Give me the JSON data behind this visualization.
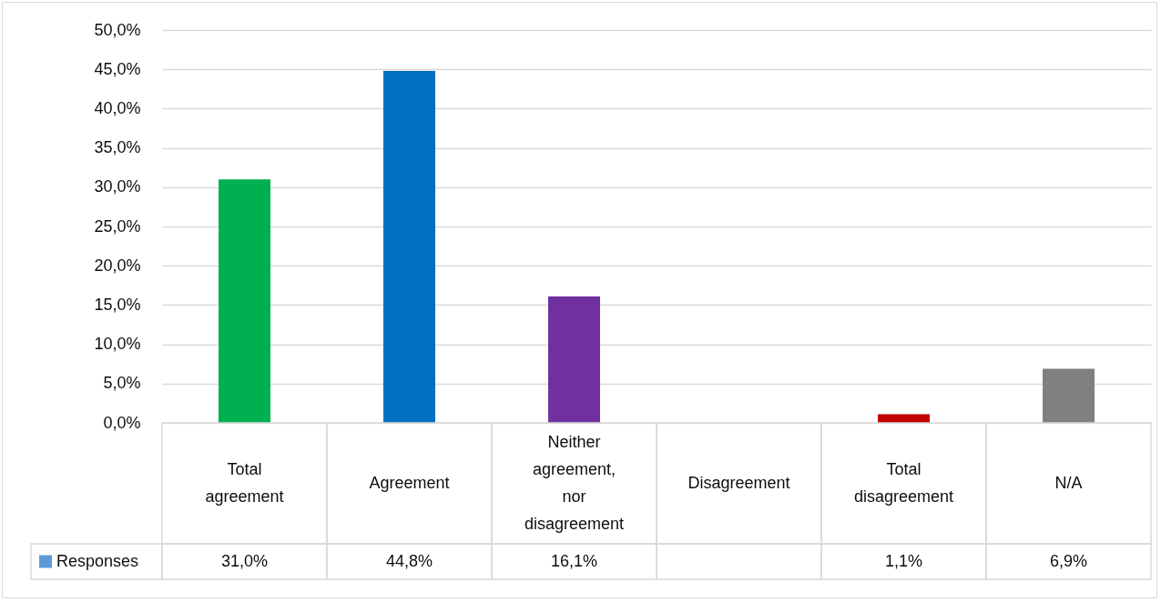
{
  "chart_data": {
    "type": "bar",
    "categories": [
      "Total agreement",
      "Agreement",
      "Neither agreement, nor disagreement",
      "Disagreement",
      "Total disagreement",
      "N/A"
    ],
    "series": [
      {
        "name": "Responses",
        "color": "#5b9bd5",
        "colors": [
          "#00b050",
          "#0070c0",
          "#7030a0",
          null,
          "#c00000",
          "#808080"
        ],
        "values": [
          31.0,
          44.8,
          16.1,
          null,
          1.1,
          6.9
        ],
        "value_labels": [
          "31,0%",
          "44,8%",
          "16,1%",
          null,
          "1,1%",
          "6,9%"
        ]
      }
    ],
    "ylim": [
      0,
      50
    ],
    "yticks": [
      {
        "value": 0,
        "label": "0,0%"
      },
      {
        "value": 5,
        "label": "5,0%"
      },
      {
        "value": 10,
        "label": "10,0%"
      },
      {
        "value": 15,
        "label": "15,0%"
      },
      {
        "value": 20,
        "label": "20,0%"
      },
      {
        "value": 25,
        "label": "25,0%"
      },
      {
        "value": 30,
        "label": "30,0%"
      },
      {
        "value": 35,
        "label": "35,0%"
      },
      {
        "value": 40,
        "label": "40,0%"
      },
      {
        "value": 45,
        "label": "45,0%"
      },
      {
        "value": 50,
        "label": "50,0%"
      }
    ],
    "grid": "y",
    "legend": "bottom left"
  }
}
